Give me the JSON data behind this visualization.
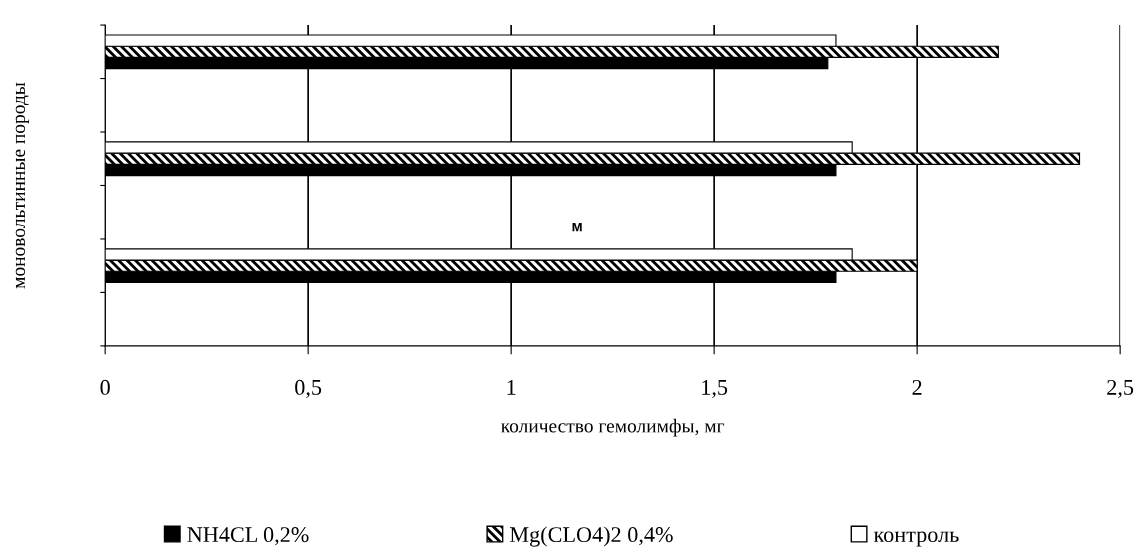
{
  "chart_data": {
    "type": "bar",
    "orientation": "horizontal",
    "xlabel": "количество гемолимфы, мг",
    "ylabel": "моновольтинные породы",
    "categories": [
      null,
      null,
      null,
      null,
      null,
      null
    ],
    "series": [
      {
        "name": "NH4CL 0,2%",
        "color": "#000000",
        "values": [
          1.78,
          null,
          1.8,
          null,
          1.8,
          null
        ]
      },
      {
        "name": "Mg(CLO4)2 0,4%",
        "color": "#000000",
        "values": [
          2.2,
          null,
          2.4,
          null,
          2.0,
          null
        ]
      },
      {
        "name": "контроль",
        "color": "#ffffff",
        "values": [
          1.8,
          null,
          1.84,
          null,
          1.84,
          null
        ]
      }
    ],
    "xlim": [
      0,
      2.5
    ],
    "xticks": [
      0,
      {
        "value": 0.5,
        "label": "0,5"
      },
      1,
      {
        "value": 1.5,
        "label": "1,5"
      },
      2,
      {
        "value": 2.5,
        "label": "2,5"
      }
    ],
    "grid": "x",
    "legend": "bottom",
    "annotations": [
      "м"
    ]
  }
}
